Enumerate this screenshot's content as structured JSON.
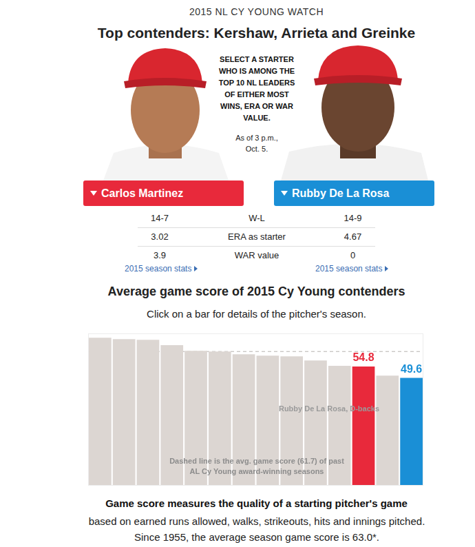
{
  "header": {
    "kicker": "2015 NL CY YOUNG WATCH",
    "title": "Top contenders: Kershaw, Arrieta and Greinke"
  },
  "selector": {
    "instruction": "SELECT A STARTER WHO IS AMONG THE TOP 10 NL LEADERS OF EITHER MOST WINS, ERA OR WAR VALUE.",
    "as_of": "As of 3 p.m., Oct. 5."
  },
  "stat_labels": [
    "W-L",
    "ERA as starter",
    "WAR value"
  ],
  "players": [
    {
      "name": "Carlos Martinez",
      "color": "#e8293b",
      "stats": [
        "14-7",
        "3.02",
        "3.9"
      ],
      "link": "2015 season stats"
    },
    {
      "name": "Rubby De La Rosa",
      "color": "#1a8fd6",
      "stats": [
        "14-9",
        "4.67",
        "0"
      ],
      "link": "2015 season stats"
    }
  ],
  "chart_data": {
    "type": "bar",
    "title": "Average game score of 2015 Cy Young contenders",
    "subtitle": "Click on a bar for details of the pitcher's season.",
    "categories": [
      null,
      null,
      null,
      null,
      null,
      null,
      null,
      null,
      null,
      null,
      null,
      null,
      null,
      null
    ],
    "values": [
      68.0,
      67.4,
      67.1,
      64.6,
      62.0,
      61.7,
      60.4,
      59.8,
      59.5,
      57.6,
      55.1,
      54.8,
      50.6,
      49.6
    ],
    "colors": [
      "#dcd6d2",
      "#dcd6d2",
      "#dcd6d2",
      "#dcd6d2",
      "#dcd6d2",
      "#dcd6d2",
      "#dcd6d2",
      "#dcd6d2",
      "#dcd6d2",
      "#dcd6d2",
      "#dcd6d2",
      "#e8293b",
      "#dcd6d2",
      "#1a8fd6"
    ],
    "data_labels": true,
    "value_labels": [
      null,
      null,
      null,
      null,
      null,
      null,
      null,
      null,
      null,
      null,
      null,
      "54.8",
      null,
      "49.6"
    ],
    "reference_line": {
      "value": 61.7,
      "label": "Dashed line is the avg. game score (61.7) of past AL Cy Young award-winning seasons"
    },
    "annotations": [
      "Rubby De La Rosa, D-backs"
    ],
    "ylim": [
      0,
      70
    ],
    "yticks": [],
    "grid": false,
    "tick_labels": false
  },
  "footer": {
    "bold": "Game score measures the quality of a starting pitcher's game",
    "text": "based on earned runs allowed, walks, strikeouts, hits and innings pitched. Since 1955, the average season game score is 63.0*."
  }
}
